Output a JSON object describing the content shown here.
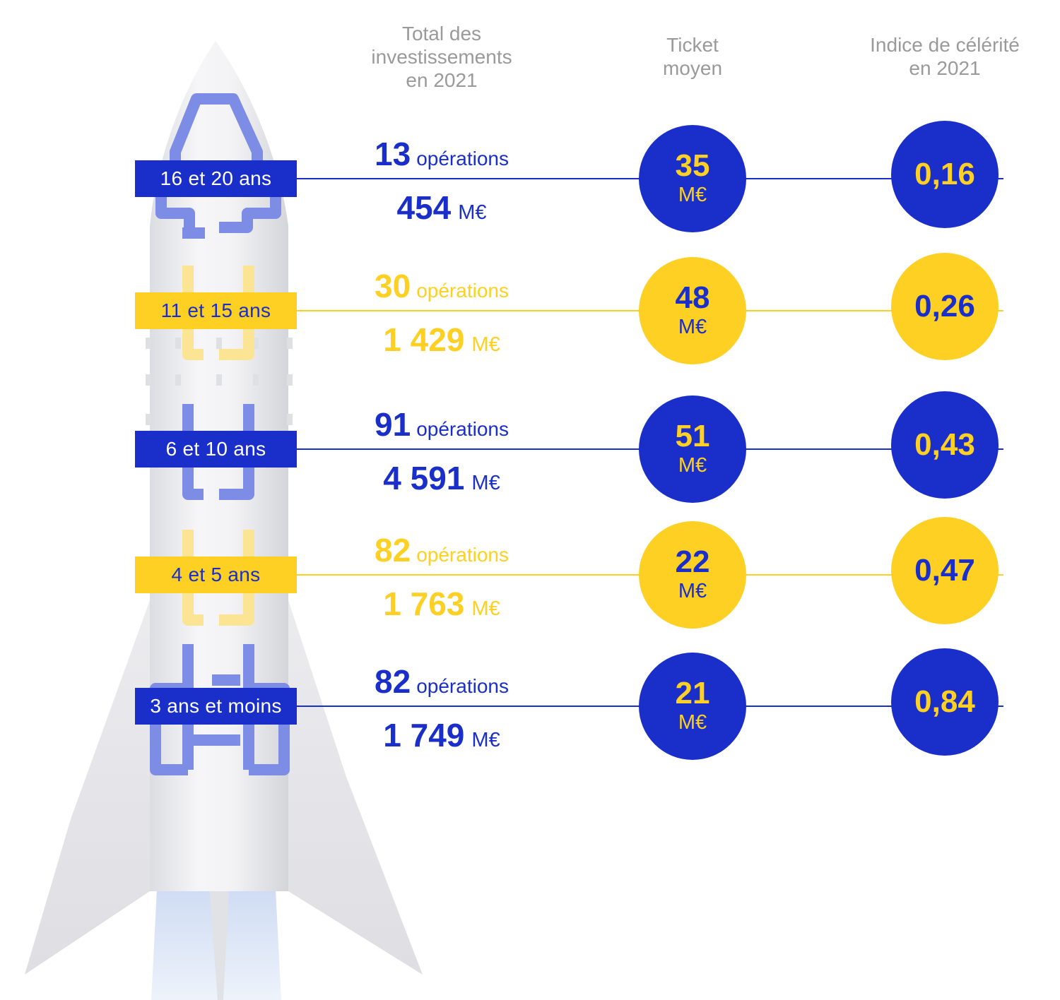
{
  "colors": {
    "blue": "#1a2fc9",
    "yellow": "#fdd023",
    "header_grey": "#9a9a9a"
  },
  "headers": {
    "total": [
      "Total des",
      "investissements",
      "en 2021"
    ],
    "ticket": [
      "Ticket",
      "moyen"
    ],
    "celerite": [
      "Indice de célérité",
      "en 2021"
    ]
  },
  "chart_data": {
    "type": "table",
    "columns": [
      "Total des investissements en 2021",
      "Ticket moyen",
      "Indice de célérité en 2021"
    ],
    "rows": [
      {
        "age": "16 et 20 ans",
        "operations": "13",
        "operations_label": "opérations",
        "amount": "454",
        "amount_unit": "M€",
        "ticket": "35",
        "ticket_unit": "M€",
        "indice": "0,16",
        "theme": "blue"
      },
      {
        "age": "11 et 15 ans",
        "operations": "30",
        "operations_label": "opérations",
        "amount": "1 429",
        "amount_unit": "M€",
        "ticket": "48",
        "ticket_unit": "M€",
        "indice": "0,26",
        "theme": "yellow"
      },
      {
        "age": "6 et 10 ans",
        "operations": "91",
        "operations_label": "opérations",
        "amount": "4 591",
        "amount_unit": "M€",
        "ticket": "51",
        "ticket_unit": "M€",
        "indice": "0,43",
        "theme": "blue"
      },
      {
        "age": "4 et 5 ans",
        "operations": "82",
        "operations_label": "opérations",
        "amount": "1 763",
        "amount_unit": "M€",
        "ticket": "22",
        "ticket_unit": "M€",
        "indice": "0,47",
        "theme": "yellow"
      },
      {
        "age": "3 ans et moins",
        "operations": "82",
        "operations_label": "opérations",
        "amount": "1 749",
        "amount_unit": "M€",
        "ticket": "21",
        "ticket_unit": "M€",
        "indice": "0,84",
        "theme": "blue"
      }
    ]
  }
}
